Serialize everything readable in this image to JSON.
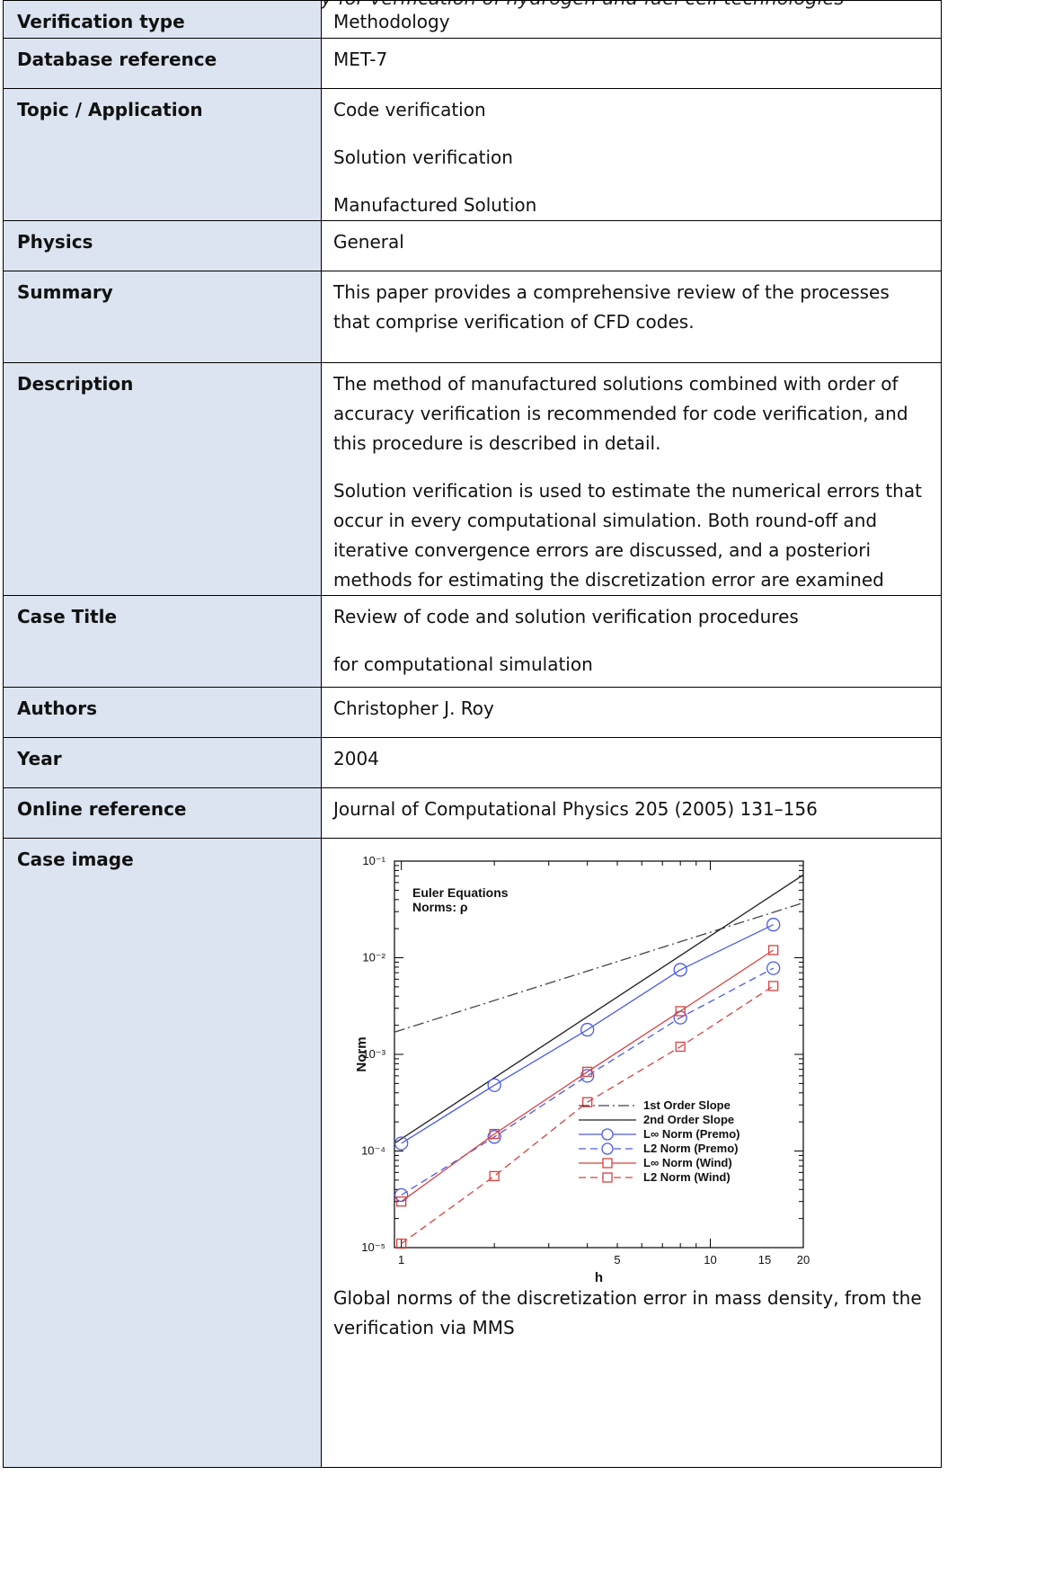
{
  "header": "Methodology for verification of hydrogen and fuel cell technologies",
  "rows": [
    {
      "label": "Verification type",
      "values": [
        "Methodology"
      ]
    },
    {
      "label": "Database reference",
      "values": [
        "MET-7"
      ]
    },
    {
      "label": "Topic / Application",
      "values": [
        "Code verification",
        "Solution verification",
        "Manufactured Solution"
      ]
    },
    {
      "label": "Physics",
      "values": [
        "General"
      ]
    },
    {
      "label": "Summary",
      "values": [
        "This paper provides a comprehensive review of the processes that comprise verification of CFD codes."
      ]
    },
    {
      "label": "Description",
      "values": [
        "The method of manufactured solutions combined with order of accuracy verification is recommended for code verification, and this procedure is described in detail.",
        "Solution verification is used to estimate the numerical errors that occur in every computational simulation. Both round-off and iterative convergence errors are discussed, and a posteriori methods for estimating the discretization error are examined"
      ]
    },
    {
      "label": "Case Title",
      "values": [
        "Review of code and solution verification procedures",
        "for computational simulation"
      ]
    },
    {
      "label": "Authors",
      "values": [
        "Christopher J. Roy"
      ]
    },
    {
      "label": "Year",
      "values": [
        "2004"
      ]
    },
    {
      "label": "Online reference",
      "values": [
        "Journal of Computational Physics 205 (2005) 131–156"
      ]
    }
  ],
  "case_image": {
    "label": "Case image",
    "caption": "Global norms of the discretization error in mass density, from the verification via MMS"
  },
  "chart_data": {
    "type": "line",
    "x_scale": "log",
    "y_scale": "log",
    "xlim": [
      0.95,
      20
    ],
    "ylim": [
      1e-05,
      0.1
    ],
    "xlabel": "h",
    "ylabel": "Norm",
    "xticks": [
      1,
      5,
      10,
      15,
      20
    ],
    "yticks": [
      "10⁻⁵",
      "10⁻⁴",
      "10⁻³",
      "10⁻²",
      "10⁻¹"
    ],
    "annotation": [
      "Euler Equations",
      "Norms: ρ"
    ],
    "legend_position": "bottom-right",
    "series": [
      {
        "name": "1st Order Slope",
        "style": "dashdot",
        "color": "#444444",
        "x": [
          0.95,
          20
        ],
        "y": [
          0.0017,
          0.037
        ]
      },
      {
        "name": "2nd Order Slope",
        "style": "solid",
        "color": "#222222",
        "x": [
          0.95,
          20
        ],
        "y": [
          0.00012,
          0.072
        ]
      },
      {
        "name": "L∞ Norm (Premo)",
        "style": "solid",
        "color": "#4a5be6",
        "marker": "circle",
        "x": [
          1,
          2,
          4,
          8,
          16
        ],
        "y": [
          0.00012,
          0.00048,
          0.0018,
          0.0075,
          0.022
        ]
      },
      {
        "name": "L2 Norm (Premo)",
        "style": "dashed",
        "color": "#4a5be6",
        "marker": "circle",
        "x": [
          1,
          2,
          4,
          8,
          16
        ],
        "y": [
          3.5e-05,
          0.00014,
          0.0006,
          0.0024,
          0.0078
        ]
      },
      {
        "name": "L∞ Norm (Wind)",
        "style": "solid",
        "color": "#d84040",
        "marker": "square",
        "x": [
          1,
          2,
          4,
          8,
          16
        ],
        "y": [
          3e-05,
          0.00015,
          0.00066,
          0.0028,
          0.012
        ]
      },
      {
        "name": "L2 Norm (Wind)",
        "style": "dashed",
        "color": "#d84040",
        "marker": "square",
        "x": [
          1,
          2,
          4,
          8,
          16
        ],
        "y": [
          1.1e-05,
          5.5e-05,
          0.00032,
          0.0012,
          0.0051
        ]
      }
    ]
  }
}
